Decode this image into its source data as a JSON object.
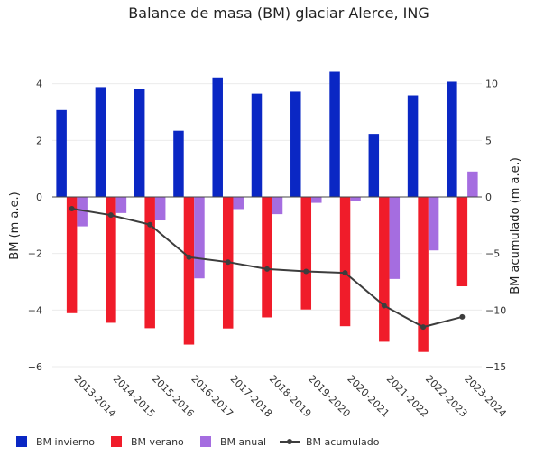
{
  "chart_data": {
    "type": "bar",
    "title": "Balance de masa (BM) glaciar Alerce, ING",
    "ylabel": "BM (m a.e.)",
    "y2label": "BM acumulado (m a.e.)",
    "xlabel": "",
    "ylim": [
      -6,
      5
    ],
    "y2lim": [
      -15,
      12.5
    ],
    "yticks": [
      -6,
      -4,
      -2,
      0,
      2,
      4
    ],
    "y2ticks": [
      -15,
      -10,
      -5,
      0,
      5,
      10
    ],
    "categories": [
      "2013-2014",
      "2014-2015",
      "2015-2016",
      "2016-2017",
      "2017-2018",
      "2018-2019",
      "2019-2020",
      "2020-2021",
      "2021-2022",
      "2022-2023",
      "2023-2024"
    ],
    "series": [
      {
        "name": "BM invierno",
        "type": "bar",
        "color": "#0a27c4",
        "values": [
          3.07,
          3.88,
          3.81,
          2.34,
          4.22,
          3.65,
          3.72,
          4.42,
          2.23,
          3.59,
          4.07
        ]
      },
      {
        "name": "BM verano",
        "type": "bar",
        "color": "#f01c2a",
        "values": [
          -4.11,
          -4.45,
          -4.64,
          -5.22,
          -4.65,
          -4.26,
          -3.98,
          -4.57,
          -5.12,
          -5.48,
          -3.16
        ]
      },
      {
        "name": "BM anual",
        "type": "bar",
        "color": "#a56de0",
        "values": [
          -1.04,
          -0.57,
          -0.83,
          -2.88,
          -0.43,
          -0.61,
          -0.21,
          -0.13,
          -2.9,
          -1.89,
          0.9
        ]
      },
      {
        "name": "BM acumulado",
        "type": "line",
        "axis": "y2",
        "color": "#3d3d3d",
        "values": [
          -1.04,
          -1.61,
          -2.45,
          -5.33,
          -5.76,
          -6.37,
          -6.58,
          -6.71,
          -9.61,
          -11.5,
          -10.6
        ]
      }
    ],
    "legend_position": "bottom-left",
    "grid": true
  }
}
